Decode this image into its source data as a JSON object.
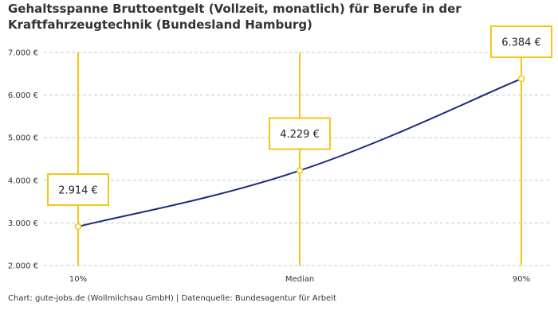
{
  "chart_data": {
    "type": "line",
    "title": "Gehaltsspanne Bruttoentgelt (Vollzeit, monatlich) für Berufe in der Kraftfahrzeugtechnik (Bundesland Hamburg)",
    "categories": [
      "10%",
      "Median",
      "90%"
    ],
    "values": [
      2914,
      4229,
      6384
    ],
    "value_labels": [
      "2.914 €",
      "4.229 €",
      "6.384 €"
    ],
    "y_ticks": [
      2000,
      3000,
      4000,
      5000,
      6000,
      7000
    ],
    "y_tick_labels": [
      "2.000 €",
      "3.000 €",
      "4.000 €",
      "5.000 €",
      "6.000 €",
      "7.000 €"
    ],
    "ylim": [
      2000,
      7000
    ],
    "grid": true,
    "colors": {
      "line": "#1b2a80",
      "accent": "#f5c518"
    }
  },
  "footer": "Chart: gute-jobs.de (Wollmilchsau GmbH) | Datenquelle: Bundesagentur für Arbeit"
}
